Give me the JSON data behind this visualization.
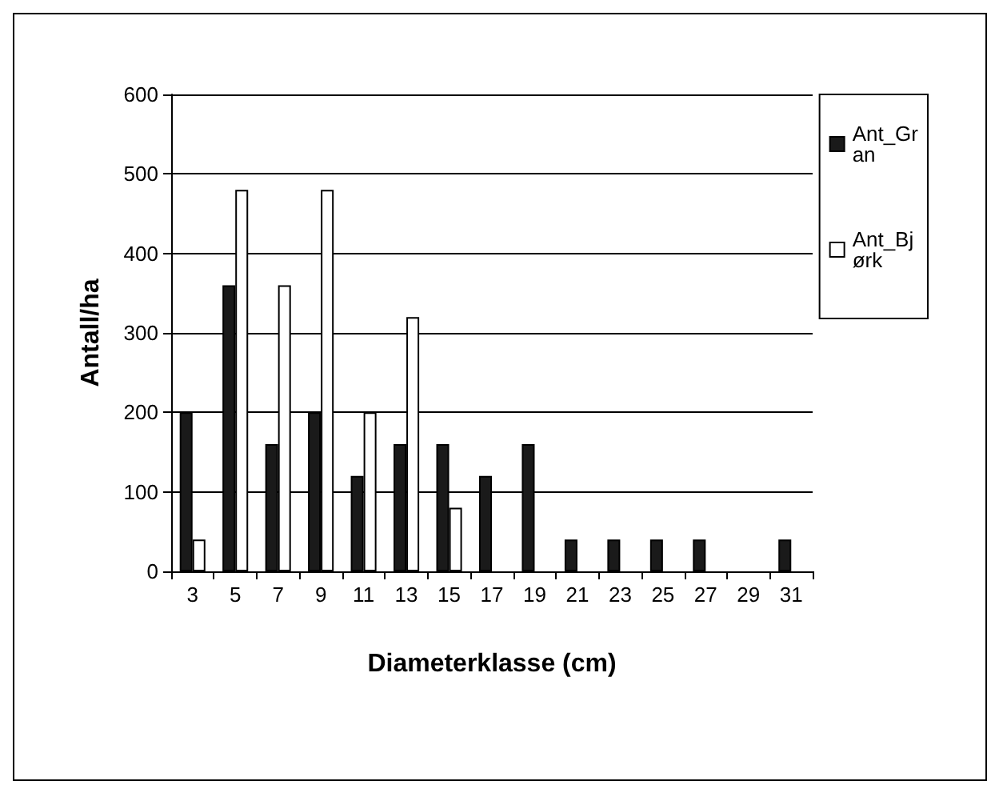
{
  "chart_data": {
    "type": "bar",
    "xlabel": "Diameterklasse (cm)",
    "ylabel": "Antall/ha",
    "categories": [
      "3",
      "5",
      "7",
      "9",
      "11",
      "13",
      "15",
      "17",
      "19",
      "21",
      "23",
      "25",
      "27",
      "29",
      "31"
    ],
    "series": [
      {
        "name": "Ant_Gran",
        "color": "#1a1a1a",
        "values": [
          200,
          360,
          160,
          200,
          120,
          160,
          160,
          120,
          160,
          40,
          40,
          40,
          40,
          0,
          40
        ]
      },
      {
        "name": "Ant_Bjørk",
        "color": "#ffffff",
        "values": [
          40,
          480,
          360,
          480,
          200,
          320,
          80,
          0,
          0,
          0,
          0,
          0,
          0,
          0,
          0
        ]
      }
    ],
    "ylim": [
      0,
      600
    ],
    "yticks": [
      0,
      100,
      200,
      300,
      400,
      500,
      600
    ],
    "grid": "y",
    "legend": "right"
  }
}
